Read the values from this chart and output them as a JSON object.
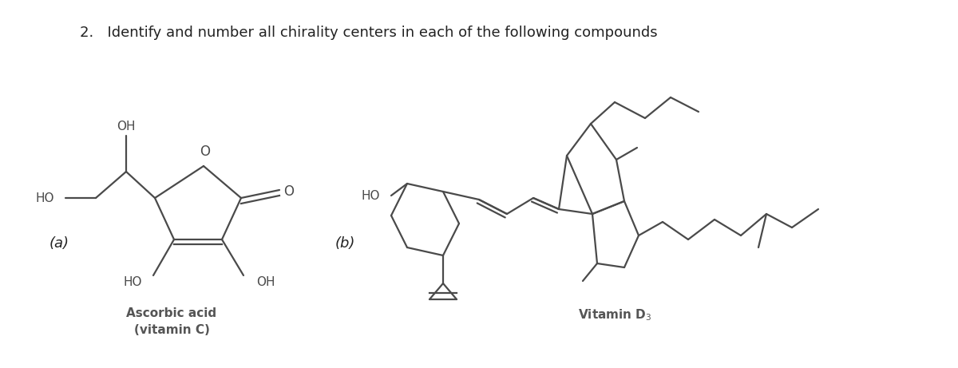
{
  "title": "2.   Identify and number all chirality centers in each of the following compounds",
  "bg_color": "#ffffff",
  "line_color": "#4a4a4a",
  "lw": 1.6,
  "label_a": "(a)",
  "label_b": "(b)",
  "caption_a": "Ascorbic acid\n(vitamin C)",
  "caption_b": "Vitamin D$_3$"
}
